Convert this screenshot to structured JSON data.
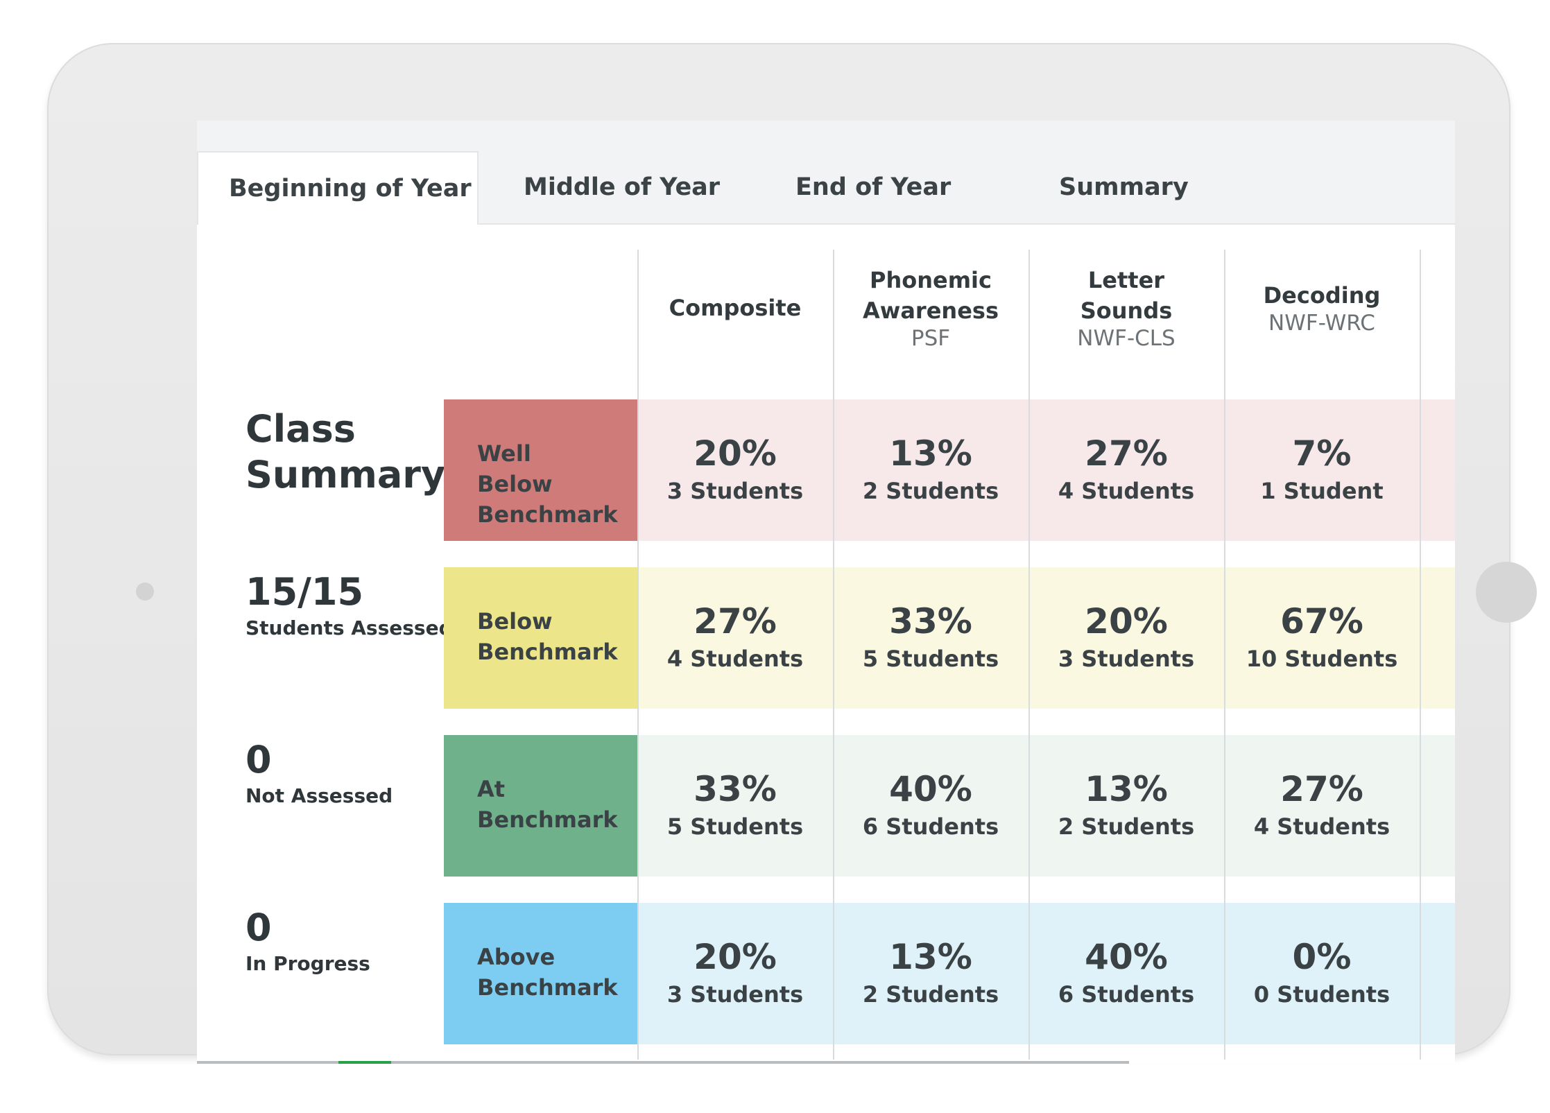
{
  "tabs": [
    {
      "label": "Beginning of Year",
      "active": true
    },
    {
      "label": "Middle of Year",
      "active": false
    },
    {
      "label": "End of Year",
      "active": false
    },
    {
      "label": "Summary",
      "active": false
    }
  ],
  "columns": [
    {
      "name": "Composite",
      "abbr": ""
    },
    {
      "name": "Phonemic Awareness",
      "abbr": "PSF"
    },
    {
      "name": "Letter Sounds",
      "abbr": "NWF-CLS"
    },
    {
      "name": "Decoding",
      "abbr": "NWF-WRC"
    }
  ],
  "summary": {
    "title": "Class Summary",
    "stats": [
      {
        "value": "15/15",
        "label": "Students Assessed"
      },
      {
        "value": "0",
        "label": "Not Assessed"
      },
      {
        "value": "0",
        "label": "In Progress"
      }
    ]
  },
  "rows": [
    {
      "category": "Well Below Benchmark",
      "color": "#cf7b79",
      "bg": "#f7e9ea",
      "cells": [
        {
          "pct": "20%",
          "count": "3 Students"
        },
        {
          "pct": "13%",
          "count": "2 Students"
        },
        {
          "pct": "27%",
          "count": "4 Students"
        },
        {
          "pct": "7%",
          "count": "1 Student"
        }
      ]
    },
    {
      "category": "Below Benchmark",
      "color": "#ede58a",
      "bg": "#fbf8e2",
      "cells": [
        {
          "pct": "27%",
          "count": "4 Students"
        },
        {
          "pct": "33%",
          "count": "5 Students"
        },
        {
          "pct": "20%",
          "count": "3 Students"
        },
        {
          "pct": "67%",
          "count": "10 Students"
        }
      ]
    },
    {
      "category": "At Benchmark",
      "color": "#6eb18b",
      "bg": "#eff5f1",
      "cells": [
        {
          "pct": "33%",
          "count": "5 Students"
        },
        {
          "pct": "40%",
          "count": "6 Students"
        },
        {
          "pct": "13%",
          "count": "2 Students"
        },
        {
          "pct": "27%",
          "count": "4 Students"
        }
      ]
    },
    {
      "category": "Above Benchmark",
      "color": "#7dcdf2",
      "bg": "#e0f2f9",
      "cells": [
        {
          "pct": "20%",
          "count": "3 Students"
        },
        {
          "pct": "13%",
          "count": "2 Students"
        },
        {
          "pct": "40%",
          "count": "6 Students"
        },
        {
          "pct": "0%",
          "count": "0 Students"
        }
      ]
    }
  ]
}
